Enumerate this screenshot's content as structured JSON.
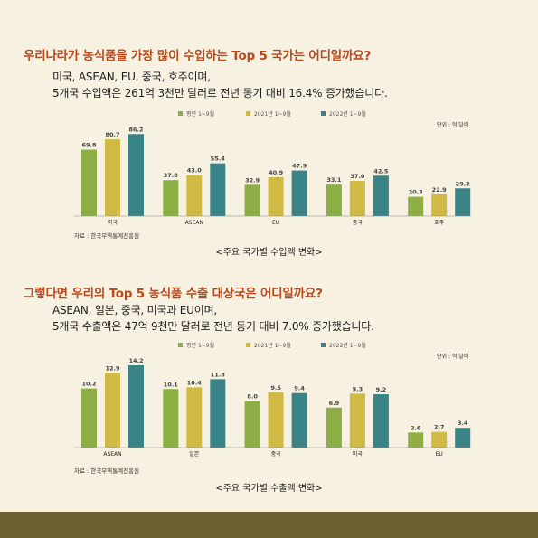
{
  "colors": {
    "background": "#f7f1e2",
    "title": "#b84a1e",
    "series": [
      "#8cae44",
      "#d0ba44",
      "#3a8488"
    ],
    "footer": "#6b6030"
  },
  "sections": [
    {
      "title": "우리나라가 농식품을 가장 많이 수입하는 Top 5 국가는 어디일까요?",
      "summary_line1": "미국, ASEAN, EU, 중국, 호주이며,",
      "summary_line2": "5개국 수입액은 261억 3천만 달러로 전년 동기 대비 16.4% 증가했습니다.",
      "source": "자료 : 한국무역통계진흥원",
      "caption": "<주요 국가별 수입액 변화>"
    },
    {
      "title": "그렇다면 우리의 Top 5 농식품 수출 대상국은 어디일까요?",
      "summary_line1": "ASEAN, 일본, 중국, 미국과 EU이며,",
      "summary_line2": "5개국 수출액은 47억 9천만 달러로 전년 동기 대비 7.0% 증가했습니다.",
      "source": "자료 : 한국무역통계진흥원",
      "caption": "<주요 국가별 수출액 변화>"
    }
  ],
  "chart_data": [
    {
      "type": "bar",
      "unit": "단위 : 억 달러",
      "categories": [
        "미국",
        "ASEAN",
        "EU",
        "중국",
        "호주"
      ],
      "series": [
        {
          "name": "평년 1~9월",
          "values": [
            69.8,
            37.8,
            32.9,
            33.1,
            20.3
          ]
        },
        {
          "name": "2021년 1~9월",
          "values": [
            80.7,
            43.0,
            40.9,
            37.0,
            22.9
          ]
        },
        {
          "name": "2022년 1~9월",
          "values": [
            86.2,
            55.4,
            47.9,
            42.5,
            29.2
          ]
        }
      ],
      "value_labels": [
        [
          "69.8",
          "37.8",
          "32.9",
          "33.1",
          "20.3"
        ],
        [
          "80.7",
          "43.0",
          "40.9",
          "37.0",
          "22.9"
        ],
        [
          "86.2",
          "55.4",
          "47.9",
          "42.5",
          "29.2"
        ]
      ],
      "ylim": [
        0,
        95
      ],
      "legend": "top",
      "grid": false
    },
    {
      "type": "bar",
      "unit": "단위 : 억 달러",
      "categories": [
        "ASEAN",
        "일본",
        "중국",
        "미국",
        "EU"
      ],
      "series": [
        {
          "name": "평년 1~9월",
          "values": [
            10.2,
            10.1,
            8.0,
            6.9,
            2.6
          ]
        },
        {
          "name": "2021년 1~9월",
          "values": [
            12.9,
            10.4,
            9.5,
            9.3,
            2.7
          ]
        },
        {
          "name": "2022년 1~9월",
          "values": [
            14.2,
            11.8,
            9.4,
            9.2,
            3.4
          ]
        }
      ],
      "value_labels": [
        [
          "10.2",
          "10.1",
          "8.0",
          "6.9",
          "2.6"
        ],
        [
          "12.9",
          "10.4",
          "9.5",
          "9.3",
          "2.7"
        ],
        [
          "14.2",
          "11.8",
          "9.4",
          "9.2",
          "3.4"
        ]
      ],
      "ylim": [
        0,
        15.6
      ],
      "legend": "top",
      "grid": false
    }
  ]
}
